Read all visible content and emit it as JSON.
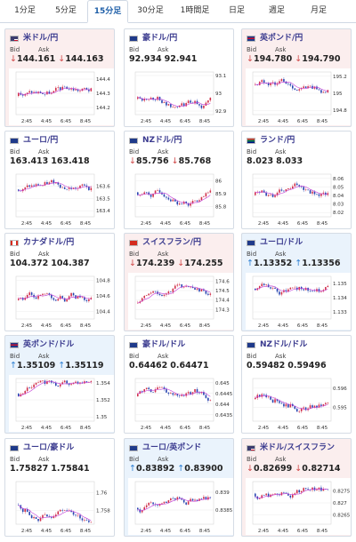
{
  "tabs": [
    {
      "label": "1分足",
      "active": false
    },
    {
      "label": "5分足",
      "active": false
    },
    {
      "label": "15分足",
      "active": true
    },
    {
      "label": "30分足",
      "active": false
    },
    {
      "label": "1時間足",
      "active": false
    },
    {
      "label": "日足",
      "active": false
    },
    {
      "label": "週足",
      "active": false
    },
    {
      "label": "月足",
      "active": false
    }
  ],
  "labels": {
    "bid": "Bid",
    "ask": "Ask"
  },
  "colors": {
    "up_bg": "#eaf3fc",
    "down_bg": "#fbeeee",
    "down_text": "#d04848",
    "up_text": "#2d7fd3",
    "candle_up": "#d0304a",
    "candle_down": "#2744b0",
    "ma": "#c23ad6"
  },
  "cards": [
    {
      "pair": "米ドル/円",
      "flag": "us-flag",
      "trend": "down",
      "bid": "144.161",
      "ask": "144.163",
      "dir": "down",
      "chart_data": {
        "type": "candlestick",
        "x_ticks": [
          "2:45",
          "4:45",
          "6:45",
          "8:45"
        ],
        "y_ticks": [
          "144.4",
          "144.3",
          "144.2"
        ],
        "ylim": [
          144.15,
          144.45
        ]
      }
    },
    {
      "pair": "豪ドル/円",
      "flag": "au-flag",
      "trend": "neutral",
      "bid": "92.934",
      "ask": "92.941",
      "dir": "none",
      "chart_data": {
        "type": "candlestick",
        "x_ticks": [
          "2:45",
          "4:45",
          "6:45",
          "8:45"
        ],
        "y_ticks": [
          "93.1",
          "93",
          "92.9"
        ],
        "ylim": [
          92.88,
          93.12
        ]
      }
    },
    {
      "pair": "英ポンド/円",
      "flag": "uk-flag",
      "trend": "down",
      "bid": "194.780",
      "ask": "194.790",
      "dir": "down",
      "chart_data": {
        "type": "candlestick",
        "x_ticks": [
          "2:45",
          "4:45",
          "6:45",
          "8:45"
        ],
        "y_ticks": [
          "195.2",
          "195",
          "194.8"
        ],
        "ylim": [
          194.75,
          195.25
        ]
      }
    },
    {
      "pair": "ユーロ/円",
      "flag": "eu-flag",
      "trend": "neutral",
      "bid": "163.413",
      "ask": "163.418",
      "dir": "none",
      "chart_data": {
        "type": "candlestick",
        "x_ticks": [
          "2:45",
          "4:45",
          "6:45",
          "8:45"
        ],
        "y_ticks": [
          "163.6",
          "163.5",
          "163.4"
        ],
        "ylim": [
          163.35,
          163.7
        ]
      }
    },
    {
      "pair": "NZドル/円",
      "flag": "nz-flag",
      "trend": "neutral",
      "bid": "85.756",
      "ask": "85.768",
      "dir": "down",
      "chart_data": {
        "type": "candlestick",
        "x_ticks": [
          "2:45",
          "4:45",
          "6:45",
          "8:45"
        ],
        "y_ticks": [
          "86",
          "85.9",
          "85.8"
        ],
        "ylim": [
          85.72,
          86.05
        ]
      }
    },
    {
      "pair": "ランド/円",
      "flag": "za-flag",
      "trend": "neutral",
      "bid": "8.023",
      "ask": "8.033",
      "dir": "none",
      "chart_data": {
        "type": "candlestick",
        "x_ticks": [
          "2:45",
          "4:45",
          "6:45",
          "8:45"
        ],
        "y_ticks": [
          "8.06",
          "8.05",
          "8.04",
          "8.03",
          "8.02"
        ],
        "ylim": [
          8.015,
          8.065
        ]
      }
    },
    {
      "pair": "カナダドル/円",
      "flag": "ca-flag",
      "trend": "neutral",
      "bid": "104.372",
      "ask": "104.387",
      "dir": "none",
      "chart_data": {
        "type": "candlestick",
        "x_ticks": [
          "2:45",
          "4:45",
          "6:45",
          "8:45"
        ],
        "y_ticks": [
          "104.8",
          "104.6",
          "104.4"
        ],
        "ylim": [
          104.3,
          104.85
        ]
      }
    },
    {
      "pair": "スイスフラン/円",
      "flag": "ch-flag",
      "trend": "down",
      "bid": "174.239",
      "ask": "174.255",
      "dir": "down",
      "chart_data": {
        "type": "candlestick",
        "x_ticks": [
          "2:45",
          "4:45",
          "6:45",
          "8:45"
        ],
        "y_ticks": [
          "174.6",
          "174.5",
          "174.4",
          "174.3"
        ],
        "ylim": [
          174.2,
          174.65
        ]
      }
    },
    {
      "pair": "ユーロ/ドル",
      "flag": "eu-flag",
      "trend": "up",
      "bid": "1.13352",
      "ask": "1.13356",
      "dir": "up",
      "chart_data": {
        "type": "candlestick",
        "x_ticks": [
          "2:45",
          "4:45",
          "6:45",
          "8:45"
        ],
        "y_ticks": [
          "1.135",
          "1.134",
          "1.133"
        ],
        "ylim": [
          1.1325,
          1.1355
        ]
      }
    },
    {
      "pair": "英ポンド/ドル",
      "flag": "uk-flag",
      "trend": "up",
      "bid": "1.35109",
      "ask": "1.35119",
      "dir": "up",
      "chart_data": {
        "type": "candlestick",
        "x_ticks": [
          "2:45",
          "4:45",
          "6:45",
          "8:45"
        ],
        "y_ticks": [
          "1.354",
          "1.352",
          "1.35"
        ],
        "ylim": [
          1.3495,
          1.3545
        ]
      }
    },
    {
      "pair": "豪ドル/ドル",
      "flag": "au-flag",
      "trend": "neutral",
      "bid": "0.64462",
      "ask": "0.64471",
      "dir": "none",
      "chart_data": {
        "type": "candlestick",
        "x_ticks": [
          "2:45",
          "4:45",
          "6:45",
          "8:45"
        ],
        "y_ticks": [
          "0.645",
          "0.6445",
          "0.644",
          "0.6435"
        ],
        "ylim": [
          0.6432,
          0.6452
        ]
      }
    },
    {
      "pair": "NZドル/ドル",
      "flag": "nz-flag",
      "trend": "neutral",
      "bid": "0.59482",
      "ask": "0.59496",
      "dir": "none",
      "chart_data": {
        "type": "candlestick",
        "x_ticks": [
          "2:45",
          "4:45",
          "6:45",
          "8:45"
        ],
        "y_ticks": [
          "0.596",
          "0.595"
        ],
        "ylim": [
          0.5943,
          0.5965
        ]
      }
    },
    {
      "pair": "ユーロ/豪ドル",
      "flag": "eu-flag",
      "trend": "neutral",
      "bid": "1.75827",
      "ask": "1.75841",
      "dir": "none",
      "chart_data": {
        "type": "candlestick",
        "x_ticks": [
          "2:45",
          "4:45",
          "6:45",
          "8:45"
        ],
        "y_ticks": [
          "1.76",
          "1.758"
        ],
        "ylim": [
          1.7565,
          1.7612
        ]
      }
    },
    {
      "pair": "ユーロ/英ポンド",
      "flag": "eu-flag",
      "trend": "up",
      "bid": "0.83892",
      "ask": "0.83900",
      "dir": "up",
      "chart_data": {
        "type": "candlestick",
        "x_ticks": [
          "2:45",
          "4:45",
          "6:45",
          "8:45"
        ],
        "y_ticks": [
          "0.839",
          "0.8385"
        ],
        "ylim": [
          0.8381,
          0.8393
        ]
      }
    },
    {
      "pair": "米ドル/スイスフラン",
      "flag": "us-flag",
      "trend": "down",
      "bid": "0.82699",
      "ask": "0.82714",
      "dir": "down",
      "chart_data": {
        "type": "candlestick",
        "x_ticks": [
          "2:45",
          "4:45",
          "6:45",
          "8:45"
        ],
        "y_ticks": [
          "0.8275",
          "0.827",
          "0.8265"
        ],
        "ylim": [
          0.8261,
          0.8279
        ]
      }
    }
  ]
}
